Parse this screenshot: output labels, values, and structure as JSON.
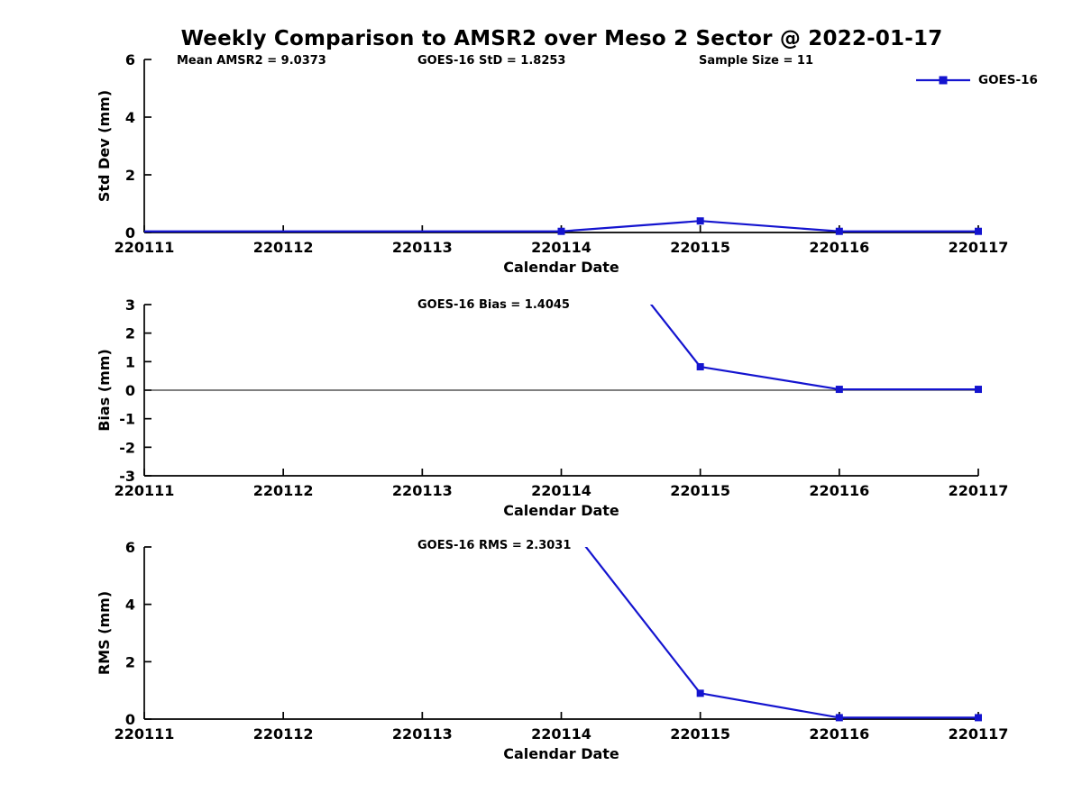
{
  "figure": {
    "title": "Weekly Comparison to AMSR2 over Meso 2 Sector @ 2022-01-17",
    "legend": {
      "label": "GOES-16",
      "marker": "square"
    }
  },
  "colors": {
    "series_line": "#1414cf",
    "axis": "#000000",
    "background": "#ffffff"
  },
  "chart_data": [
    {
      "type": "line",
      "name": "std-dev-subplot",
      "annotations": [
        "Mean AMSR2 = 9.0373",
        "GOES-16 StD = 1.8253",
        "Sample Size = 11"
      ],
      "xlabel": "Calendar Date",
      "ylabel": "Std Dev (mm)",
      "x_categories": [
        "220111",
        "220112",
        "220113",
        "220114",
        "220115",
        "220116",
        "220117"
      ],
      "ylim": [
        0,
        6
      ],
      "yticks": [
        0,
        2,
        4,
        6
      ],
      "zero_line": false,
      "legend_visible": true,
      "series": [
        {
          "name": "GOES-16",
          "color": "#1414cf",
          "marker": "square",
          "marker_from_index": 3,
          "values": [
            0.04,
            0.04,
            0.04,
            0.04,
            0.4,
            0.04,
            0.04
          ]
        }
      ]
    },
    {
      "type": "line",
      "name": "bias-subplot",
      "annotation": "GOES-16 Bias  = 1.4045",
      "xlabel": "Calendar Date",
      "ylabel": "Bias (mm)",
      "x_categories": [
        "220111",
        "220112",
        "220113",
        "220114",
        "220115",
        "220116",
        "220117"
      ],
      "ylim": [
        -3,
        3
      ],
      "yticks": [
        -3,
        -2,
        -1,
        0,
        1,
        2,
        3
      ],
      "zero_line": true,
      "legend_visible": false,
      "series": [
        {
          "name": "GOES-16",
          "color": "#1414cf",
          "marker": "square",
          "marker_from_index": 3,
          "values": [
            null,
            null,
            null,
            7.0,
            0.82,
            0.03,
            0.03
          ],
          "note": "value at 220114 is off-scale (line clipped at top of axes)"
        }
      ]
    },
    {
      "type": "line",
      "name": "rms-subplot",
      "annotation": "GOES-16 RMS = 2.3031",
      "xlabel": "Calendar Date",
      "ylabel": "RMS (mm)",
      "x_categories": [
        "220111",
        "220112",
        "220113",
        "220114",
        "220115",
        "220116",
        "220117"
      ],
      "ylim": [
        0,
        6
      ],
      "yticks": [
        0,
        2,
        4,
        6
      ],
      "zero_line": false,
      "legend_visible": false,
      "series": [
        {
          "name": "GOES-16",
          "color": "#1414cf",
          "marker": "square",
          "marker_from_index": 3,
          "values": [
            null,
            null,
            null,
            7.1,
            0.9,
            0.05,
            0.05
          ],
          "note": "value at 220114 is off-scale (line clipped at top of axes)"
        }
      ]
    }
  ]
}
